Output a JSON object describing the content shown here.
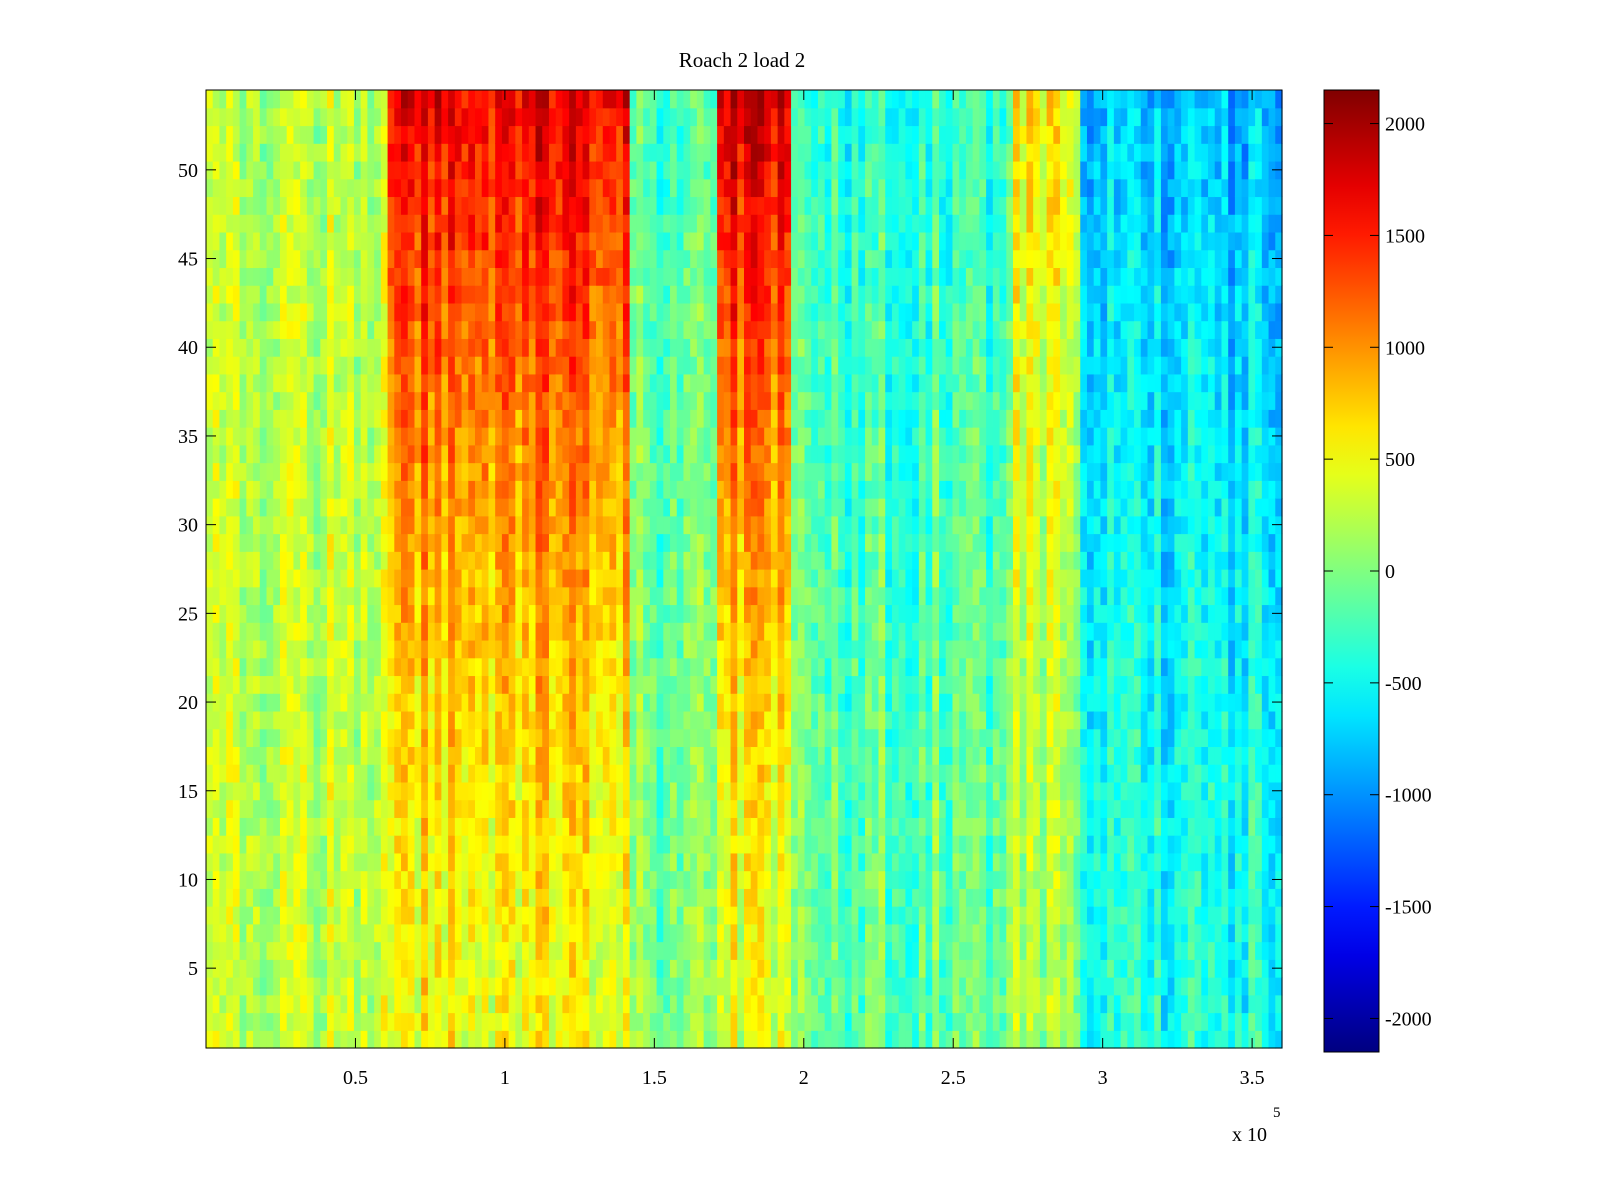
{
  "chart_data": {
    "type": "heatmap",
    "title": "Roach 2 load 2",
    "xlabel": "",
    "ylabel": "",
    "x_exponent_label": "x 10",
    "x_exponent": "5",
    "xlim": [
      0,
      360000
    ],
    "ylim": [
      0.5,
      54.5
    ],
    "x_ticks": [
      {
        "value": 50000,
        "label": "0.5"
      },
      {
        "value": 100000,
        "label": "1"
      },
      {
        "value": 150000,
        "label": "1.5"
      },
      {
        "value": 200000,
        "label": "2"
      },
      {
        "value": 250000,
        "label": "2.5"
      },
      {
        "value": 300000,
        "label": "3"
      },
      {
        "value": 350000,
        "label": "3.5"
      }
    ],
    "y_ticks": [
      {
        "value": 5,
        "label": "5"
      },
      {
        "value": 10,
        "label": "10"
      },
      {
        "value": 15,
        "label": "15"
      },
      {
        "value": 20,
        "label": "20"
      },
      {
        "value": 25,
        "label": "25"
      },
      {
        "value": 30,
        "label": "30"
      },
      {
        "value": 35,
        "label": "35"
      },
      {
        "value": 40,
        "label": "40"
      },
      {
        "value": 45,
        "label": "45"
      },
      {
        "value": 50,
        "label": "50"
      }
    ],
    "colormap": "jet",
    "clim": [
      -2150,
      2150
    ],
    "colorbar_ticks": [
      {
        "value": 2000,
        "label": "2000"
      },
      {
        "value": 1500,
        "label": "1500"
      },
      {
        "value": 1000,
        "label": "1000"
      },
      {
        "value": 500,
        "label": "500"
      },
      {
        "value": 0,
        "label": "0"
      },
      {
        "value": -500,
        "label": "-500"
      },
      {
        "value": -1000,
        "label": "-1000"
      },
      {
        "value": -1500,
        "label": "-1500"
      },
      {
        "value": -2000,
        "label": "-2000"
      }
    ],
    "grid": false,
    "regions": [
      {
        "x_range": [
          0,
          60000
        ],
        "low_value": 300,
        "high_value": 250,
        "description": "mostly green-yellow"
      },
      {
        "x_range": [
          60000,
          142000
        ],
        "low_value": 500,
        "high_value": 1700,
        "description": "orange-red, dark red near top"
      },
      {
        "x_range": [
          142000,
          170000
        ],
        "low_value": 0,
        "high_value": -250,
        "description": "cyan-green"
      },
      {
        "x_range": [
          170000,
          196000
        ],
        "low_value": 400,
        "high_value": 1800,
        "description": "red band near top"
      },
      {
        "x_range": [
          196000,
          270000
        ],
        "low_value": -100,
        "high_value": -350,
        "description": "cyan"
      },
      {
        "x_range": [
          270000,
          293000
        ],
        "low_value": 150,
        "high_value": 550,
        "description": "yellow-orange streaks"
      },
      {
        "x_range": [
          293000,
          360000
        ],
        "low_value": -400,
        "high_value": -800,
        "description": "blue-cyan, darker blue rows 38-44"
      }
    ]
  }
}
